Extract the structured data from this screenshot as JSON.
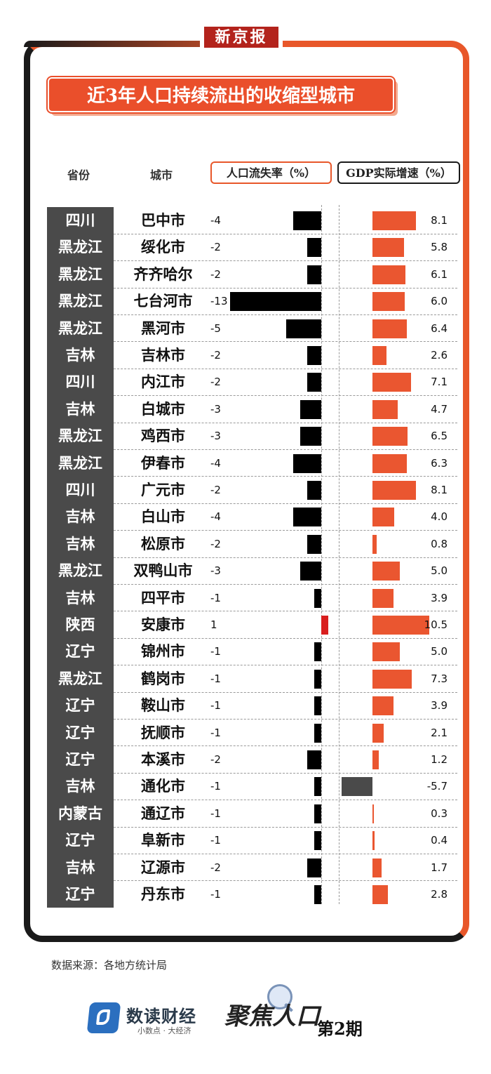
{
  "brand_tag": "新京报",
  "title": "近3年人口持续流出的收缩型城市",
  "headers": {
    "province": "省份",
    "city": "城市",
    "loss": "人口流失率（%）",
    "gdp": "GDP实际增速（%）"
  },
  "chart_data": {
    "type": "bar",
    "title": "近3年人口持续流出的收缩型城市",
    "series": [
      {
        "name": "人口流失率（%）",
        "values": [
          -4,
          -2,
          -2,
          -13,
          -5,
          -2,
          -2,
          -3,
          -3,
          -4,
          -2,
          -4,
          -2,
          -3,
          -1,
          1,
          -1,
          -1,
          -1,
          -1,
          -2,
          -1,
          -1,
          -1,
          -2,
          -1
        ]
      },
      {
        "name": "GDP实际增速（%）",
        "values": [
          8.1,
          5.8,
          6.1,
          6.0,
          6.4,
          2.6,
          7.1,
          4.7,
          6.5,
          6.3,
          8.1,
          4.0,
          0.8,
          5.0,
          3.9,
          10.5,
          5.0,
          7.3,
          3.9,
          2.1,
          1.2,
          -5.7,
          0.3,
          0.4,
          1.7,
          2.8
        ]
      }
    ],
    "rows": [
      {
        "province": "四川",
        "city": "巴中市",
        "loss": "-4",
        "gdp": "8.1"
      },
      {
        "province": "黑龙江",
        "city": "绥化市",
        "loss": "-2",
        "gdp": "5.8"
      },
      {
        "province": "黑龙江",
        "city": "齐齐哈尔",
        "loss": "-2",
        "gdp": "6.1"
      },
      {
        "province": "黑龙江",
        "city": "七台河市",
        "loss": "-13",
        "gdp": "6.0"
      },
      {
        "province": "黑龙江",
        "city": "黑河市",
        "loss": "-5",
        "gdp": "6.4"
      },
      {
        "province": "吉林",
        "city": "吉林市",
        "loss": "-2",
        "gdp": "2.6"
      },
      {
        "province": "四川",
        "city": "内江市",
        "loss": "-2",
        "gdp": "7.1"
      },
      {
        "province": "吉林",
        "city": "白城市",
        "loss": "-3",
        "gdp": "4.7"
      },
      {
        "province": "黑龙江",
        "city": "鸡西市",
        "loss": "-3",
        "gdp": "6.5"
      },
      {
        "province": "黑龙江",
        "city": "伊春市",
        "loss": "-4",
        "gdp": "6.3"
      },
      {
        "province": "四川",
        "city": "广元市",
        "loss": "-2",
        "gdp": "8.1"
      },
      {
        "province": "吉林",
        "city": "白山市",
        "loss": "-4",
        "gdp": "4.0"
      },
      {
        "province": "吉林",
        "city": "松原市",
        "loss": "-2",
        "gdp": "0.8"
      },
      {
        "province": "黑龙江",
        "city": "双鸭山市",
        "loss": "-3",
        "gdp": "5.0"
      },
      {
        "province": "吉林",
        "city": "四平市",
        "loss": "-1",
        "gdp": "3.9"
      },
      {
        "province": "陕西",
        "city": "安康市",
        "loss": "1",
        "gdp": "10.5"
      },
      {
        "province": "辽宁",
        "city": "锦州市",
        "loss": "-1",
        "gdp": "5.0"
      },
      {
        "province": "黑龙江",
        "city": "鹤岗市",
        "loss": "-1",
        "gdp": "7.3"
      },
      {
        "province": "辽宁",
        "city": "鞍山市",
        "loss": "-1",
        "gdp": "3.9"
      },
      {
        "province": "辽宁",
        "city": "抚顺市",
        "loss": "-1",
        "gdp": "2.1"
      },
      {
        "province": "辽宁",
        "city": "本溪市",
        "loss": "-2",
        "gdp": "1.2"
      },
      {
        "province": "吉林",
        "city": "通化市",
        "loss": "-1",
        "gdp": "-5.7"
      },
      {
        "province": "内蒙古",
        "city": "通辽市",
        "loss": "-1",
        "gdp": "0.3"
      },
      {
        "province": "辽宁",
        "city": "阜新市",
        "loss": "-1",
        "gdp": "0.4"
      },
      {
        "province": "吉林",
        "city": "辽源市",
        "loss": "-2",
        "gdp": "1.7"
      },
      {
        "province": "辽宁",
        "city": "丹东市",
        "loss": "-1",
        "gdp": "2.8"
      }
    ],
    "colors": {
      "loss_negative": "#000000",
      "loss_positive": "#d91e1e",
      "gdp_positive": "#ea5630",
      "gdp_negative": "#4a4a4a"
    }
  },
  "footer": {
    "source": "数据来源：各地方统计局",
    "brand_name": "数读财经",
    "brand_slogan": "小数点 · 大经济",
    "series_name": "聚焦人口",
    "issue": "第2期"
  }
}
